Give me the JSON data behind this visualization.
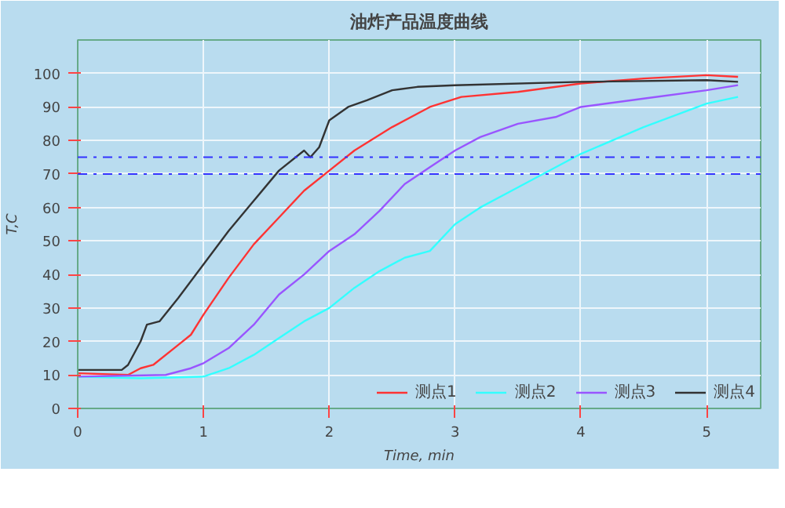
{
  "chart_data": {
    "type": "line",
    "title": "油炸产品温度曲线",
    "xlabel": "Time, min",
    "ylabel": "T,C",
    "xlim": [
      0,
      5.43
    ],
    "ylim": [
      0,
      110
    ],
    "xticks": [
      0,
      1,
      2,
      3,
      4,
      5
    ],
    "yticks": [
      0,
      10,
      20,
      30,
      40,
      50,
      60,
      70,
      80,
      90,
      100
    ],
    "grid": true,
    "legend": "bottom right",
    "line_style": "solid",
    "marker": "none",
    "ref_lines": [
      {
        "axis": "y",
        "value": 75,
        "color": "#3333ff",
        "line_style": "dashdot"
      },
      {
        "axis": "y",
        "value": 70,
        "color": "#3333ff",
        "line_style": "dashdot"
      }
    ],
    "series": [
      {
        "name": "测点1",
        "color": "#ff3333",
        "x": [
          0,
          0.4,
          0.5,
          0.6,
          0.8,
          0.9,
          1.0,
          1.2,
          1.4,
          1.6,
          1.8,
          2.0,
          2.2,
          2.5,
          2.8,
          3.05,
          3.5,
          4.0,
          4.5,
          5.0,
          5.25
        ],
        "values": [
          10.5,
          10,
          12,
          13,
          19,
          22,
          28,
          39,
          49,
          57,
          65,
          71,
          77,
          84,
          90,
          93,
          94.5,
          97,
          98.5,
          99.5,
          99
        ]
      },
      {
        "name": "测点2",
        "color": "#33ffff",
        "x": [
          0,
          0.5,
          1.0,
          1.2,
          1.4,
          1.6,
          1.8,
          2.0,
          2.2,
          2.4,
          2.6,
          2.8,
          3.0,
          3.2,
          3.5,
          4.0,
          4.5,
          5.0,
          5.25
        ],
        "values": [
          9.5,
          9,
          9.5,
          12,
          16,
          21,
          26,
          30,
          36,
          41,
          45,
          47,
          55,
          60,
          66,
          76,
          84,
          91,
          93
        ]
      },
      {
        "name": "测点3",
        "color": "#9955ff",
        "x": [
          0,
          0.7,
          0.9,
          1.0,
          1.2,
          1.4,
          1.6,
          1.8,
          2.0,
          2.2,
          2.4,
          2.6,
          2.8,
          3.0,
          3.2,
          3.5,
          3.8,
          4.0,
          4.5,
          5.0,
          5.25
        ],
        "values": [
          9.5,
          10,
          12,
          13.5,
          18,
          25,
          34,
          40,
          47,
          52,
          59,
          67,
          72,
          77,
          81,
          85,
          87,
          90,
          92.5,
          95,
          96.5
        ]
      },
      {
        "name": "测点4",
        "color": "#333333",
        "x": [
          0,
          0.35,
          0.4,
          0.5,
          0.55,
          0.65,
          0.8,
          1.0,
          1.2,
          1.4,
          1.6,
          1.8,
          1.85,
          1.92,
          2.0,
          2.15,
          2.3,
          2.5,
          2.7,
          3.0,
          4.0,
          5.0,
          5.25
        ],
        "values": [
          11.5,
          11.5,
          13,
          20,
          25,
          26,
          33,
          43,
          53,
          62,
          71,
          77,
          75,
          78,
          86,
          90,
          92,
          95,
          96,
          96.5,
          97.5,
          98,
          97.5
        ]
      }
    ]
  }
}
